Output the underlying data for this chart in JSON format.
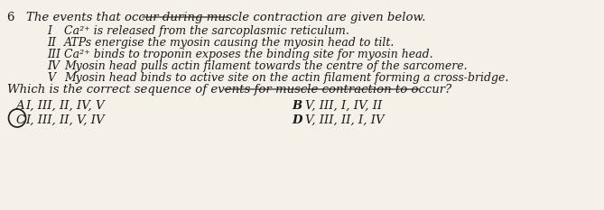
{
  "question_number": "6",
  "question_text": "The events that occur during muscle contraction are given below.",
  "items": [
    {
      "roman": "I",
      "text": "Ca²⁺ is released from the sarcoplasmic reticulum."
    },
    {
      "roman": "II",
      "text": "ATPs energise the myosin causing the myosin head to tilt."
    },
    {
      "roman": "III",
      "text": "Ca²⁺ binds to troponin exposes the binding site for myosin head."
    },
    {
      "roman": "IV",
      "text": "Myosin head pulls actin filament towards the centre of the sarcomere."
    },
    {
      "roman": "V",
      "text": "Myosin head binds to active site on the actin filament forming a cross-bridge."
    }
  ],
  "which_question": "Which is the correct sequence of events for muscle contraction to occur?",
  "options": [
    {
      "label": "A",
      "text": "I, III, II, IV, V",
      "position": "left",
      "circled": false
    },
    {
      "label": "B",
      "text": "V, III, I, IV, II",
      "position": "right",
      "circled": false
    },
    {
      "label": "C",
      "text": "I, III, II, V, IV",
      "position": "left",
      "circled": true
    },
    {
      "label": "D",
      "text": "V, III, II, I, IV",
      "position": "right",
      "circled": false
    }
  ],
  "bg_color": "#f5f0e8",
  "text_color": "#1a1a1a",
  "font_size_main": 9.5,
  "font_size_items": 9.0
}
